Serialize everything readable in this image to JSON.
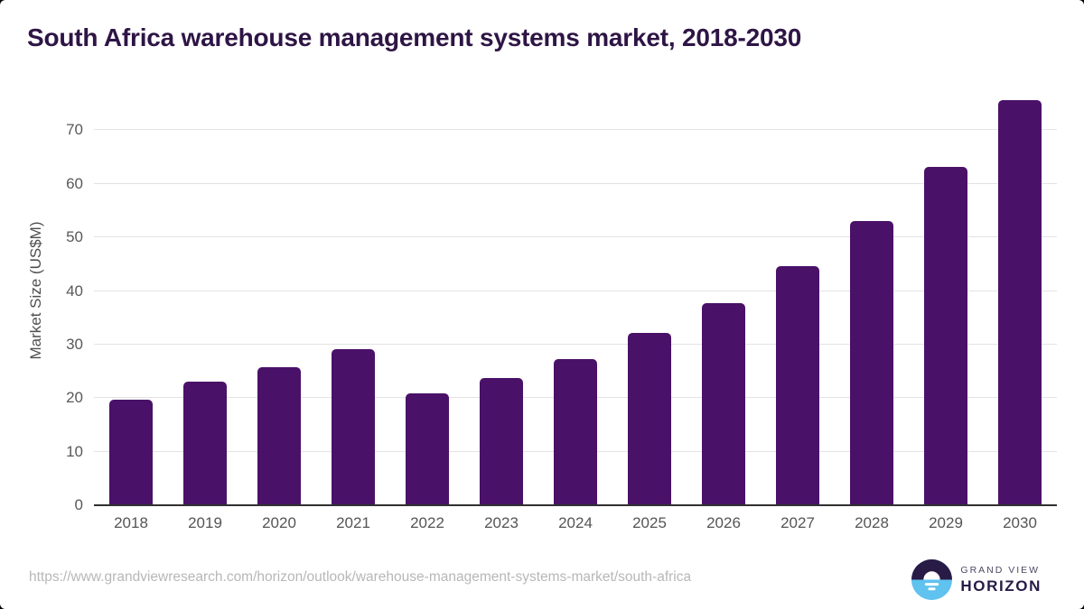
{
  "page": {
    "title": "South Africa warehouse management systems market, 2018-2030",
    "source_url": "https://www.grandviewresearch.com/horizon/outlook/warehouse-management-systems-market/south-africa"
  },
  "brand": {
    "name_top": "GRAND VIEW",
    "name_bottom": "HORIZON",
    "icon": "sunrise-horizon-circle-icon",
    "icon_dark_color": "#281b45",
    "icon_blue_color": "#5fc2ef"
  },
  "colors": {
    "bar": "#4a1168",
    "title_text": "#2e1545",
    "axis_text": "#595959",
    "gridline": "#e3e3e3",
    "axis_line": "#303030",
    "source_text": "#b7b7b7"
  },
  "chart_data": {
    "type": "bar",
    "title": "South Africa warehouse management systems market, 2018-2030",
    "categories": [
      "2018",
      "2019",
      "2020",
      "2021",
      "2022",
      "2023",
      "2024",
      "2025",
      "2026",
      "2027",
      "2028",
      "2029",
      "2030"
    ],
    "values": [
      19.7,
      23.0,
      25.8,
      29.2,
      20.9,
      23.7,
      27.3,
      32.1,
      37.7,
      44.6,
      53.0,
      63.1,
      75.6
    ],
    "xlabel": "",
    "ylabel": "Market Size (US$M)",
    "ylim": [
      0,
      80
    ],
    "yticks": [
      0,
      10,
      20,
      30,
      40,
      50,
      60,
      70
    ],
    "grid": "horizontal",
    "legend": "none",
    "bar_color": "#4a1168"
  }
}
